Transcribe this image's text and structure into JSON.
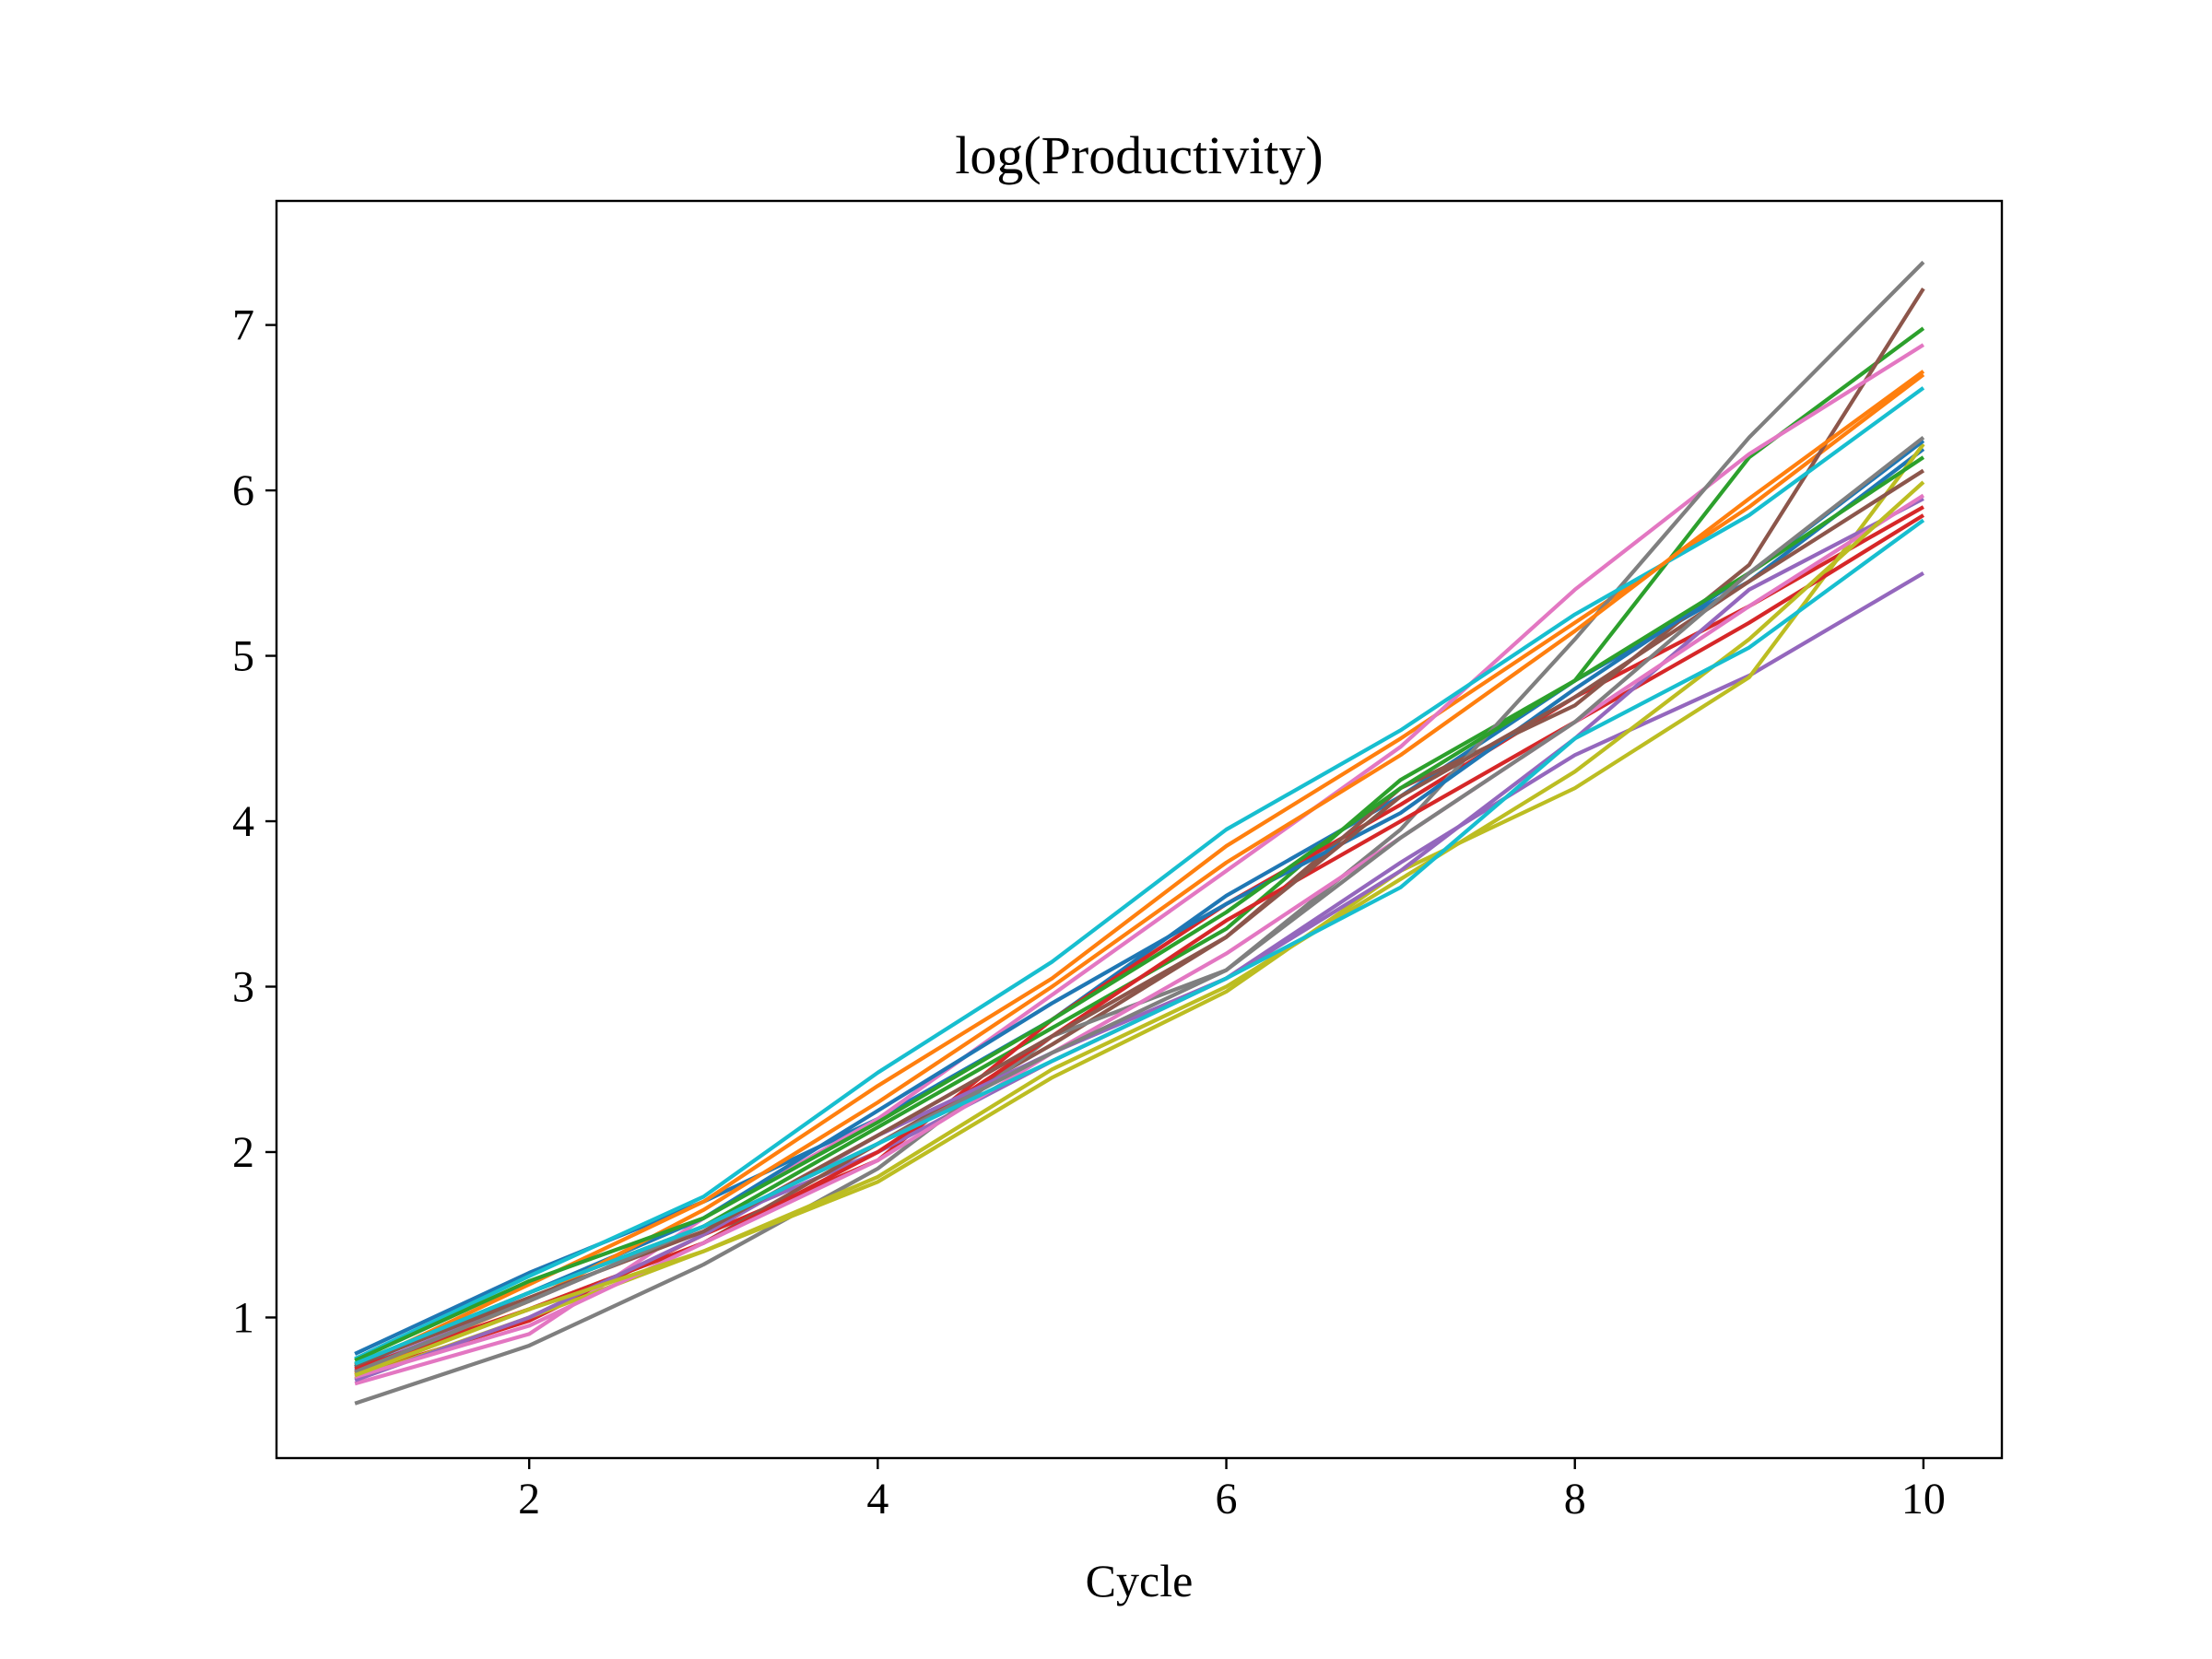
{
  "chart_data": {
    "type": "line",
    "title": "log(Productivity)",
    "xlabel": "Cycle",
    "ylabel": "",
    "xlim": [
      0.55,
      10.45
    ],
    "ylim": [
      0.15,
      7.75
    ],
    "xticks": [
      2,
      4,
      6,
      8,
      10
    ],
    "yticks": [
      1,
      2,
      3,
      4,
      5,
      6,
      7
    ],
    "grid": false,
    "x": [
      1,
      2,
      3,
      4,
      5,
      6,
      7,
      8,
      9,
      10
    ],
    "series": [
      {
        "color": "#1f77b4",
        "values": [
          0.78,
          1.27,
          1.7,
          2.2,
          2.8,
          3.55,
          4.15,
          4.85,
          5.45,
          6.25
        ]
      },
      {
        "color": "#ff7f0e",
        "values": [
          0.7,
          1.2,
          1.7,
          2.4,
          3.05,
          3.85,
          4.5,
          5.2,
          5.9,
          6.7
        ]
      },
      {
        "color": "#2ca02c",
        "values": [
          0.72,
          1.15,
          1.55,
          2.15,
          2.75,
          3.35,
          4.25,
          4.85,
          6.2,
          6.98
        ]
      },
      {
        "color": "#d62728",
        "values": [
          0.65,
          0.98,
          1.5,
          1.95,
          2.8,
          3.5,
          4.1,
          4.75,
          5.3,
          5.9
        ]
      },
      {
        "color": "#9467bd",
        "values": [
          0.68,
          1.1,
          1.55,
          2.0,
          2.55,
          3.05,
          3.75,
          4.4,
          4.88,
          5.5
        ]
      },
      {
        "color": "#8c564b",
        "values": [
          0.67,
          1.05,
          1.45,
          2.05,
          2.65,
          3.3,
          4.2,
          4.7,
          5.55,
          7.22
        ]
      },
      {
        "color": "#e377c2",
        "values": [
          0.6,
          0.9,
          1.6,
          2.2,
          2.95,
          3.7,
          4.45,
          5.4,
          6.22,
          6.88
        ]
      },
      {
        "color": "#7f7f7f",
        "values": [
          0.48,
          0.83,
          1.32,
          1.9,
          2.7,
          3.1,
          3.95,
          5.1,
          6.32,
          7.38
        ]
      },
      {
        "color": "#bcbd22",
        "values": [
          0.63,
          1.0,
          1.4,
          1.82,
          2.45,
          2.97,
          3.7,
          4.2,
          4.87,
          6.28
        ]
      },
      {
        "color": "#17becf",
        "values": [
          0.75,
          1.25,
          1.73,
          2.48,
          3.15,
          3.95,
          4.55,
          5.25,
          5.85,
          6.62
        ]
      },
      {
        "color": "#1f77b4",
        "values": [
          0.7,
          1.15,
          1.6,
          2.25,
          2.9,
          3.5,
          4.05,
          4.8,
          5.5,
          6.3
        ]
      },
      {
        "color": "#ff7f0e",
        "values": [
          0.66,
          1.1,
          1.65,
          2.3,
          3.0,
          3.75,
          4.4,
          5.15,
          5.95,
          6.72
        ]
      },
      {
        "color": "#2ca02c",
        "values": [
          0.74,
          1.22,
          1.6,
          2.18,
          2.8,
          3.45,
          4.2,
          4.85,
          5.5,
          6.2
        ]
      },
      {
        "color": "#d62728",
        "values": [
          0.69,
          1.05,
          1.45,
          2.0,
          2.7,
          3.4,
          4.0,
          4.6,
          5.2,
          5.85
        ]
      },
      {
        "color": "#9467bd",
        "values": [
          0.62,
          1.0,
          1.5,
          2.1,
          2.6,
          3.05,
          3.7,
          4.5,
          5.4,
          5.95
        ]
      },
      {
        "color": "#8c564b",
        "values": [
          0.71,
          1.12,
          1.52,
          2.1,
          2.7,
          3.3,
          4.15,
          4.75,
          5.45,
          6.12
        ]
      },
      {
        "color": "#e377c2",
        "values": [
          0.64,
          0.95,
          1.45,
          1.95,
          2.6,
          3.2,
          3.9,
          4.6,
          5.3,
          5.97
        ]
      },
      {
        "color": "#7f7f7f",
        "values": [
          0.67,
          1.1,
          1.55,
          2.05,
          2.6,
          3.1,
          3.9,
          4.6,
          5.5,
          6.32
        ]
      },
      {
        "color": "#bcbd22",
        "values": [
          0.65,
          1.05,
          1.4,
          1.85,
          2.5,
          3.0,
          3.65,
          4.3,
          5.1,
          6.05
        ]
      },
      {
        "color": "#17becf",
        "values": [
          0.72,
          1.15,
          1.55,
          2.05,
          2.55,
          3.05,
          3.6,
          4.5,
          5.05,
          5.82
        ]
      }
    ]
  }
}
